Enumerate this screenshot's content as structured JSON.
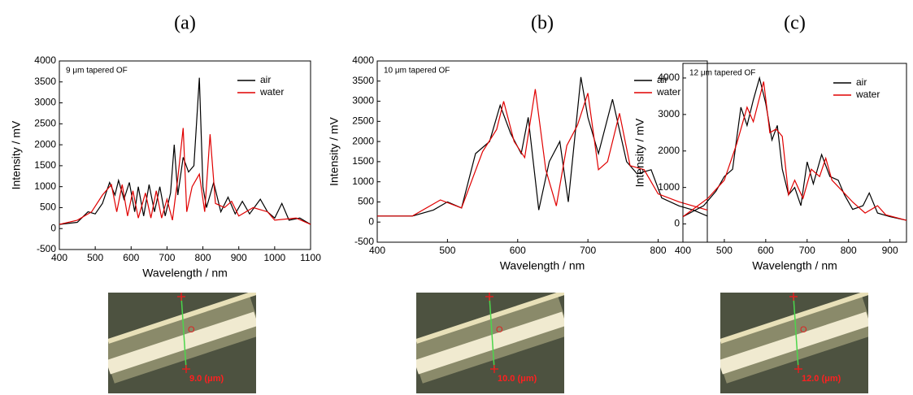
{
  "chart_data": [
    {
      "type": "line",
      "panel_label": "(a)",
      "annotation": "9 μm tapered OF",
      "x_label": "Wavelength / nm",
      "y_label": "Intensity / mV",
      "xlim": [
        400,
        1100
      ],
      "xticks": [
        400,
        500,
        600,
        700,
        800,
        900,
        1000,
        1100
      ],
      "ylim": [
        -500,
        4000
      ],
      "yticks": [
        -500,
        0,
        500,
        1000,
        1500,
        2000,
        2500,
        3000,
        3500,
        4000
      ],
      "legend": "upper right",
      "series": [
        {
          "name": "air",
          "color": "#000000",
          "x": [
            400,
            450,
            480,
            500,
            520,
            540,
            555,
            565,
            580,
            595,
            610,
            620,
            635,
            650,
            665,
            680,
            695,
            710,
            720,
            730,
            745,
            760,
            775,
            790,
            800,
            810,
            830,
            850,
            870,
            890,
            910,
            930,
            960,
            980,
            1000,
            1020,
            1040,
            1070,
            1100
          ],
          "values": [
            100,
            150,
            400,
            350,
            600,
            1100,
            800,
            1150,
            700,
            1100,
            400,
            1000,
            300,
            1050,
            400,
            1000,
            300,
            850,
            2000,
            800,
            1700,
            1350,
            1500,
            3600,
            1000,
            500,
            1100,
            400,
            750,
            350,
            650,
            350,
            700,
            400,
            250,
            600,
            200,
            250,
            100
          ]
        },
        {
          "name": "water",
          "color": "#e00000",
          "x": [
            400,
            450,
            490,
            520,
            545,
            560,
            575,
            590,
            605,
            620,
            640,
            655,
            670,
            685,
            700,
            715,
            730,
            745,
            755,
            770,
            790,
            805,
            820,
            835,
            860,
            880,
            900,
            940,
            980,
            1000,
            1060,
            1100
          ],
          "values": [
            100,
            200,
            400,
            800,
            1050,
            400,
            1050,
            300,
            900,
            250,
            850,
            250,
            900,
            250,
            700,
            200,
            1200,
            2400,
            400,
            1000,
            1300,
            400,
            2250,
            600,
            500,
            650,
            300,
            500,
            400,
            200,
            250,
            100
          ]
        }
      ]
    },
    {
      "type": "line",
      "panel_label": "(b)",
      "annotation": "10 μm tapered OF",
      "x_label": "Wavelength / nm",
      "y_label": "Intensity / mV",
      "xlim": [
        400,
        870
      ],
      "xticks": [
        400,
        500,
        600,
        700,
        800
      ],
      "ylim": [
        -500,
        4000
      ],
      "yticks": [
        -500,
        0,
        500,
        1000,
        1500,
        2000,
        2500,
        3000,
        3500,
        4000
      ],
      "legend": "upper right",
      "series": [
        {
          "name": "air",
          "color": "#000000",
          "x": [
            400,
            450,
            480,
            500,
            520,
            540,
            560,
            575,
            590,
            605,
            615,
            630,
            645,
            660,
            672,
            690,
            700,
            715,
            735,
            755,
            770,
            790,
            805,
            830,
            850,
            870
          ],
          "values": [
            150,
            150,
            300,
            500,
            350,
            1700,
            2000,
            2900,
            2200,
            1700,
            2600,
            300,
            1500,
            2000,
            500,
            3600,
            2600,
            1700,
            3050,
            1500,
            1200,
            1300,
            600,
            400,
            300,
            150
          ]
        },
        {
          "name": "water",
          "color": "#e00000",
          "x": [
            400,
            450,
            490,
            520,
            550,
            570,
            580,
            595,
            610,
            625,
            640,
            655,
            670,
            685,
            700,
            715,
            728,
            745,
            760,
            780,
            800,
            830,
            850,
            870
          ],
          "values": [
            150,
            150,
            550,
            350,
            1750,
            2300,
            3000,
            2000,
            1600,
            3300,
            1300,
            400,
            1900,
            2400,
            3200,
            1300,
            1500,
            2700,
            1400,
            1300,
            700,
            500,
            400,
            300
          ]
        }
      ]
    },
    {
      "type": "line",
      "panel_label": "(c)",
      "annotation": "12 μm tapered OF",
      "x_label": "Wavelength / nm",
      "y_label": "Intensity / mV",
      "xlim": [
        400,
        940
      ],
      "xticks": [
        400,
        500,
        600,
        700,
        800,
        900
      ],
      "ylim": [
        -500,
        4400
      ],
      "yticks": [
        0,
        1000,
        2000,
        3000,
        4000
      ],
      "legend": "upper right",
      "series": [
        {
          "name": "air",
          "color": "#000000",
          "x": [
            400,
            450,
            480,
            500,
            520,
            540,
            555,
            570,
            585,
            600,
            615,
            628,
            640,
            655,
            670,
            685,
            700,
            715,
            735,
            755,
            775,
            790,
            810,
            835,
            850,
            870,
            900,
            940
          ],
          "values": [
            200,
            500,
            900,
            1300,
            1500,
            3200,
            2700,
            3400,
            4000,
            3300,
            2300,
            2700,
            1500,
            800,
            1000,
            500,
            1700,
            1100,
            1900,
            1300,
            1200,
            800,
            400,
            500,
            850,
            300,
            200,
            100
          ]
        },
        {
          "name": "water",
          "color": "#e00000",
          "x": [
            400,
            460,
            500,
            530,
            555,
            570,
            595,
            610,
            625,
            640,
            655,
            670,
            690,
            710,
            730,
            745,
            760,
            785,
            810,
            840,
            870,
            890,
            940
          ],
          "values": [
            200,
            700,
            1200,
            2200,
            3200,
            2800,
            3900,
            2500,
            2600,
            2400,
            800,
            1200,
            700,
            1500,
            1300,
            1800,
            1200,
            900,
            600,
            300,
            500,
            250,
            100
          ]
        }
      ]
    }
  ],
  "micrographs": [
    {
      "marker": "O",
      "label": "9.0 (μm)"
    },
    {
      "marker": "O",
      "label": "10.0 (μm)"
    },
    {
      "marker": "O",
      "label": "12.0 (μm)"
    }
  ]
}
